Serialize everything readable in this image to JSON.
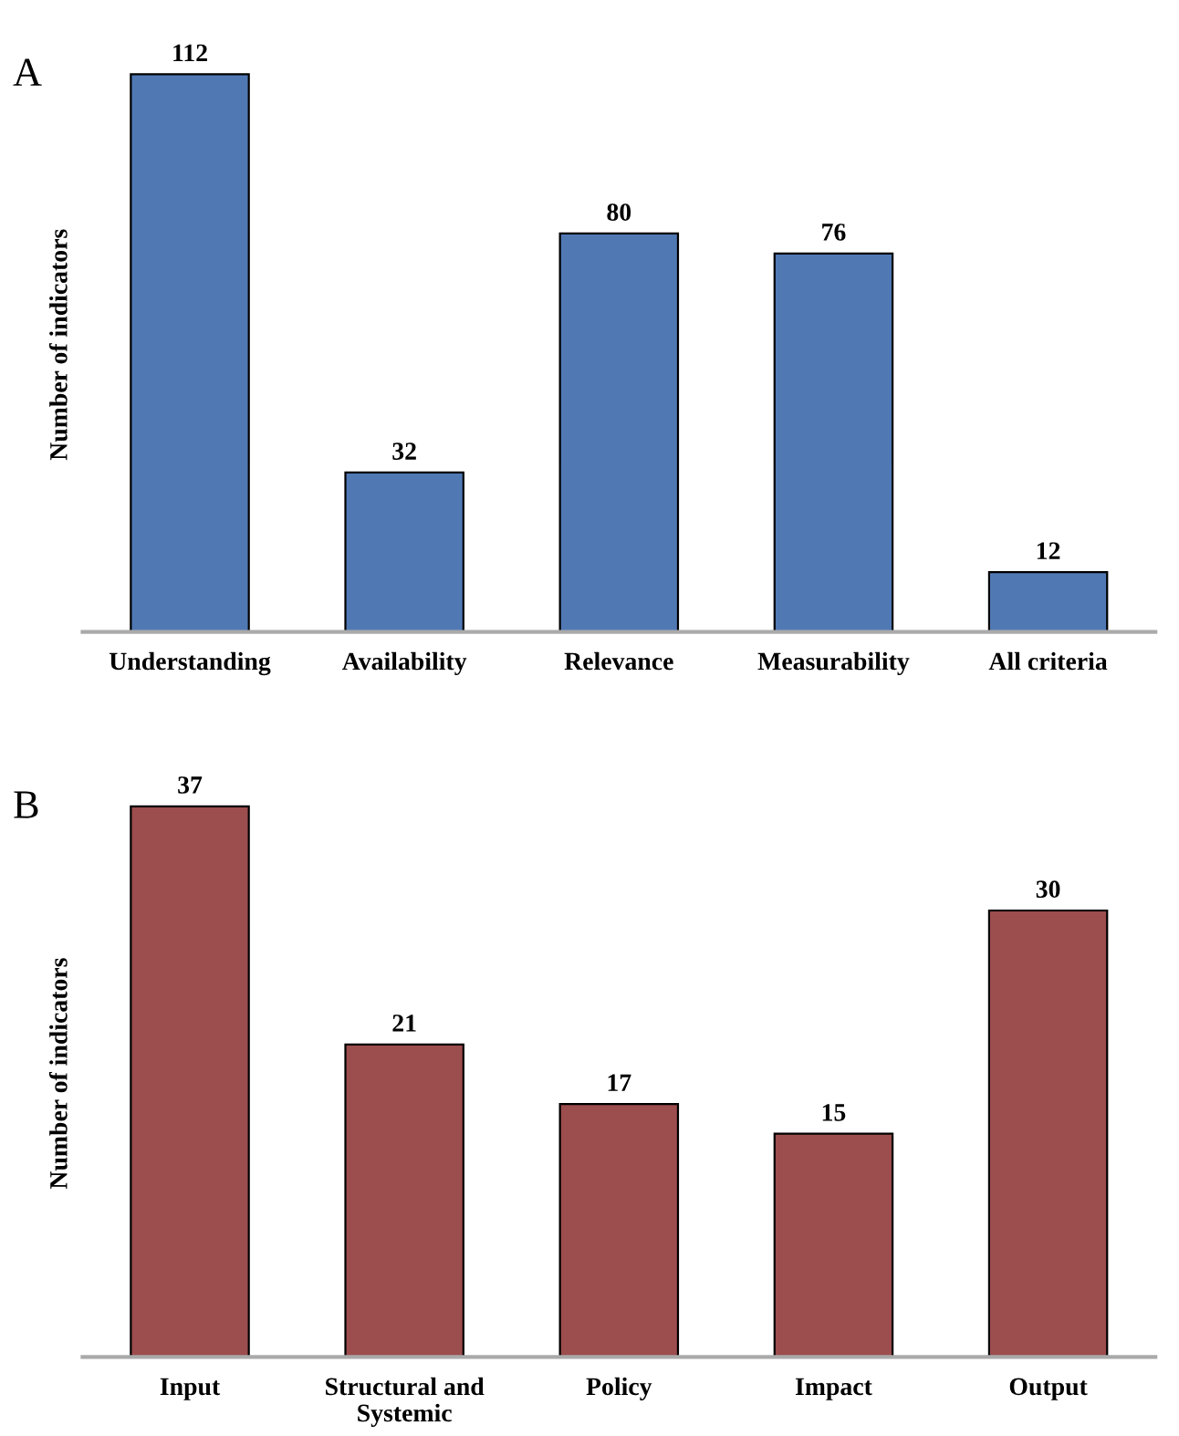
{
  "chart_data": [
    {
      "type": "bar",
      "title": "A",
      "ylabel": "Number of indicators",
      "categories": [
        "Understanding",
        "Availability",
        "Relevance",
        "Measurability",
        "All criteria"
      ],
      "values": [
        112,
        32,
        80,
        76,
        12
      ],
      "color": "#5079b4",
      "data_labels": true,
      "tick_labels": "x",
      "grid": false,
      "legend": false
    },
    {
      "type": "bar",
      "title": "B",
      "ylabel": "Number of indicators",
      "categories": [
        "Input",
        "Structural and\nSystemic",
        "Policy",
        "Impact",
        "Output"
      ],
      "values": [
        37,
        21,
        17,
        15,
        30
      ],
      "color": "#9c4d4d",
      "data_labels": true,
      "tick_labels": "x",
      "grid": false,
      "legend": false
    }
  ]
}
